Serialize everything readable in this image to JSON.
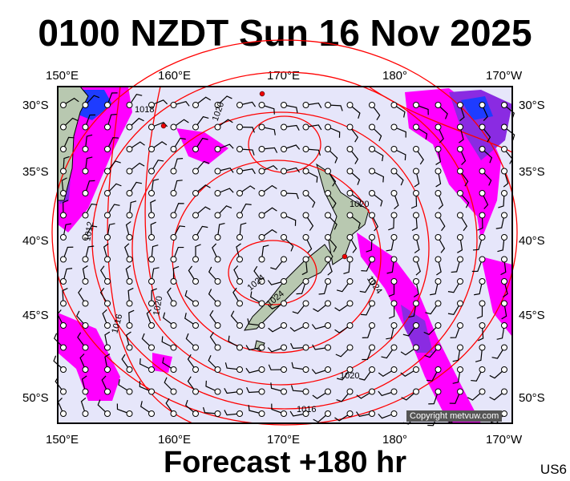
{
  "title": "0100 NZDT Sun 16 Nov 2025",
  "footer": "Forecast +180 hr",
  "code": "US6",
  "copyright": "Copyright metvuw.com",
  "lon_labels": [
    "150°E",
    "160°E",
    "170°E",
    "180°",
    "170°W"
  ],
  "lat_labels": [
    "30°S",
    "35°S",
    "40°S",
    "45°S",
    "50°S"
  ],
  "contour_labels": [
    "1018",
    "1020",
    "1020",
    "1012",
    "1016",
    "1020",
    "1024",
    "1024",
    "1024",
    "1020",
    "1016"
  ],
  "colors": {
    "background": "#e6e6fa",
    "isobar": "#ff0000",
    "rain_light": "#ff00ff",
    "rain_mid": "#8a2be2",
    "rain_heavy": "#1e3cff",
    "land": "#b8c8b0"
  }
}
